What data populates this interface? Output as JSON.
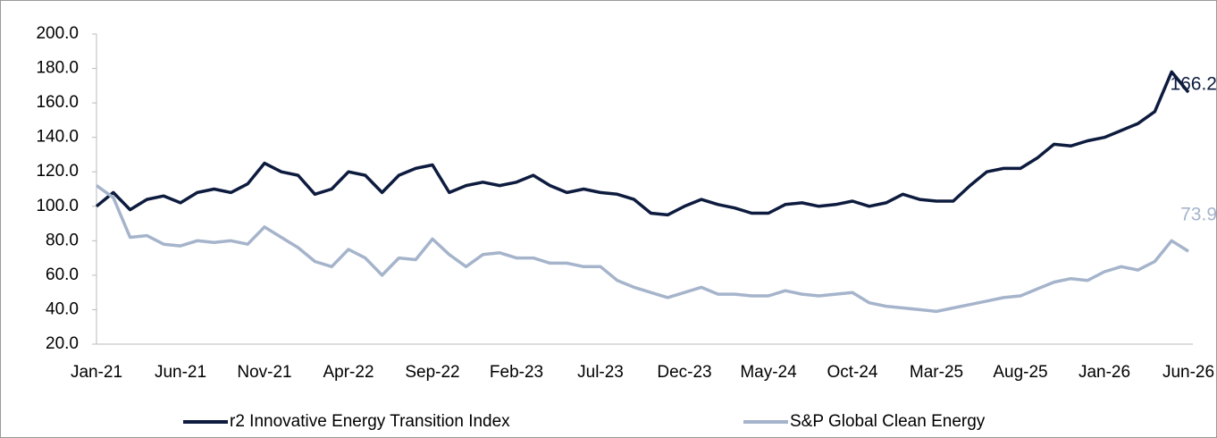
{
  "chart_data": {
    "type": "line",
    "categories": [
      "Jan-21",
      null,
      null,
      null,
      null,
      "Jun-21",
      null,
      null,
      null,
      null,
      "Nov-21",
      null,
      null,
      null,
      null,
      "Apr-22",
      null,
      null,
      null,
      null,
      "Sep-22",
      null,
      null,
      null,
      null,
      "Feb-23",
      null,
      null,
      null,
      null,
      "Jul-23",
      null,
      null,
      null,
      null,
      "Dec-23",
      null,
      null,
      null,
      null,
      "May-24",
      null,
      null,
      null,
      null,
      "Oct-24",
      null,
      null,
      null,
      null,
      "Mar-25",
      null,
      null,
      null,
      null,
      "Aug-25",
      null,
      null,
      null,
      null,
      "Jan-26",
      null,
      null,
      null,
      null,
      "Jun-26"
    ],
    "series": [
      {
        "name": "r2 Innovative Energy Transition Index",
        "color": "#0d1b3e",
        "values": [
          100,
          108,
          98,
          104,
          106,
          102,
          108,
          110,
          108,
          113,
          125,
          120,
          118,
          107,
          110,
          120,
          118,
          108,
          118,
          122,
          124,
          108,
          112,
          114,
          112,
          114,
          118,
          112,
          108,
          110,
          108,
          107,
          104,
          96,
          95,
          100,
          104,
          101,
          99,
          96,
          96,
          101,
          102,
          100,
          101,
          103,
          100,
          102,
          107,
          104,
          103,
          103,
          112,
          120,
          122,
          122,
          128,
          136,
          135,
          138,
          140,
          144,
          148,
          155,
          178,
          166.2
        ]
      },
      {
        "name": "S&P Global Clean Energy",
        "color": "#a5b4cb",
        "values": [
          112,
          105,
          82,
          83,
          78,
          77,
          80,
          79,
          80,
          78,
          88,
          82,
          76,
          68,
          65,
          75,
          70,
          60,
          70,
          69,
          81,
          72,
          65,
          72,
          73,
          70,
          70,
          67,
          67,
          65,
          65,
          57,
          53,
          50,
          47,
          50,
          53,
          49,
          49,
          48,
          48,
          51,
          49,
          48,
          49,
          50,
          44,
          42,
          41,
          40,
          39,
          41,
          43,
          45,
          47,
          48,
          52,
          56,
          58,
          57,
          62,
          65,
          63,
          68,
          80,
          73.9
        ]
      }
    ],
    "ylim": [
      20,
      200
    ],
    "yticks": [
      {
        "value": 20,
        "label": "20.0"
      },
      {
        "value": 40,
        "label": "40.0"
      },
      {
        "value": 60,
        "label": "60.0"
      },
      {
        "value": 80,
        "label": "80.0"
      },
      {
        "value": 100,
        "label": "100.0"
      },
      {
        "value": 120,
        "label": "120.0"
      },
      {
        "value": 140,
        "label": "140.0"
      },
      {
        "value": 160,
        "label": "160.0"
      },
      {
        "value": 180,
        "label": "180.0"
      },
      {
        "value": 200,
        "label": "200.0"
      }
    ],
    "legend": "bottom"
  }
}
